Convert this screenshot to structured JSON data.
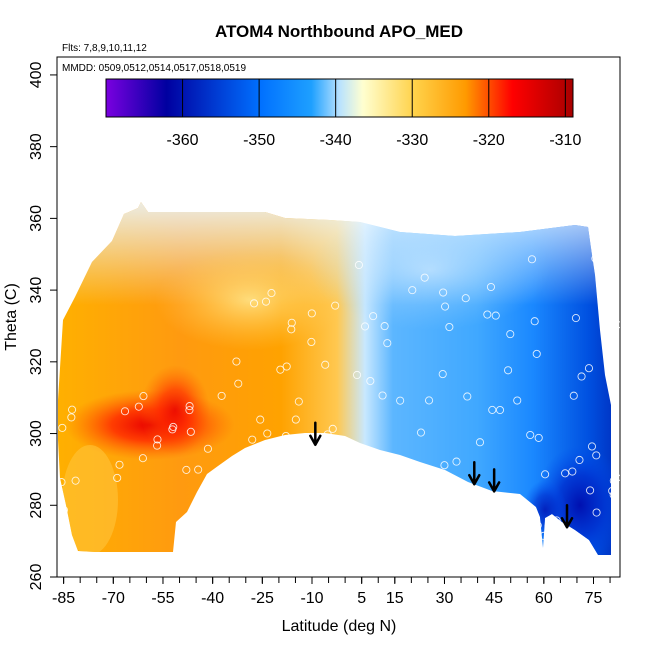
{
  "chart_data": {
    "type": "heatmap",
    "title": "ATOM4 Northbound APO_MED",
    "flights_note": "Flts: 7,8,9,10,11,12",
    "dates_note": "MMDD: 0509,0512,0514,0517,0518,0519",
    "xlabel": "Latitude (deg N)",
    "ylabel": "Theta (C)",
    "xlim": [
      -87,
      83
    ],
    "ylim": [
      260,
      405
    ],
    "x_ticks": [
      -85,
      -70,
      -55,
      -40,
      -25,
      -10,
      5,
      15,
      30,
      45,
      60,
      75
    ],
    "y_ticks": [
      260,
      280,
      300,
      320,
      340,
      360,
      380,
      400
    ],
    "colorbar": {
      "min": -370,
      "max": -309,
      "ticks": [
        -360,
        -350,
        -340,
        -330,
        -320,
        -310
      ],
      "colors": [
        "#7a00e0",
        "#0000a0",
        "#0070ff",
        "#1ea0ff",
        "#a8dcff",
        "#ffffd0",
        "#ffd24a",
        "#ff9a00",
        "#ff0000",
        "#a80000"
      ]
    },
    "grid": false,
    "field_regions": [
      {
        "lat_range": [
          -87,
          -55
        ],
        "theta_range": [
          270,
          330
        ],
        "apo_med": -327
      },
      {
        "lat_range": [
          -60,
          -45
        ],
        "theta_range": [
          290,
          305
        ],
        "apo_med": -320
      },
      {
        "lat_range": [
          -45,
          -5
        ],
        "theta_range": [
          295,
          345
        ],
        "apo_med": -329
      },
      {
        "lat_range": [
          -20,
          5
        ],
        "theta_range": [
          330,
          360
        ],
        "apo_med": -336
      },
      {
        "lat_range": [
          5,
          40
        ],
        "theta_range": [
          290,
          345
        ],
        "apo_med": -347
      },
      {
        "lat_range": [
          40,
          80
        ],
        "theta_range": [
          270,
          345
        ],
        "apo_med": -352
      },
      {
        "lat_range": [
          60,
          80
        ],
        "theta_range": [
          265,
          290
        ],
        "apo_med": -360
      }
    ],
    "arrows": [
      {
        "lat": -9,
        "theta": 303
      },
      {
        "lat": 39,
        "theta": 292
      },
      {
        "lat": 45,
        "theta": 290
      },
      {
        "lat": 67,
        "theta": 280
      }
    ]
  }
}
